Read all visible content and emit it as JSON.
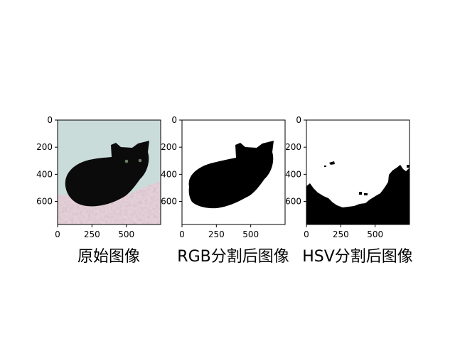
{
  "chart_data": [
    {
      "type": "image",
      "title": "原始图像",
      "xticks": [
        "0",
        "250",
        "500"
      ],
      "yticks": [
        "0",
        "200",
        "400",
        "600"
      ],
      "xlim": [
        0,
        750
      ],
      "ylim": [
        770,
        0
      ],
      "content": "kitten photo",
      "colors": {
        "background": "#c9dcd9",
        "blanket": "#e8cfd9",
        "cat": "#0b0b0b"
      }
    },
    {
      "type": "image",
      "title": "RGB分割后图像",
      "xticks": [
        "0",
        "250",
        "500"
      ],
      "yticks": [
        "0",
        "200",
        "400",
        "600"
      ],
      "xlim": [
        0,
        750
      ],
      "ylim": [
        770,
        0
      ],
      "content": "binary mask",
      "colors": {
        "background": "#ffffff",
        "mask": "#000000"
      }
    },
    {
      "type": "image",
      "title": "HSV分割后图像",
      "xticks": [
        "0",
        "250",
        "500"
      ],
      "yticks": [
        "0",
        "200",
        "400",
        "600"
      ],
      "xlim": [
        0,
        750
      ],
      "ylim": [
        770,
        0
      ],
      "content": "binary mask",
      "colors": {
        "background": "#ffffff",
        "mask": "#000000"
      }
    }
  ]
}
